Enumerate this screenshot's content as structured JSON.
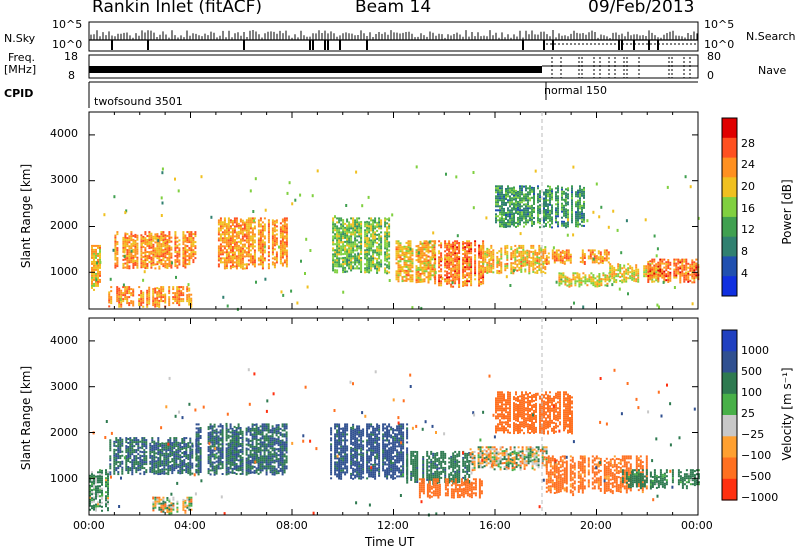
{
  "header": {
    "title": "Rankin Inlet (fitACF)",
    "beam": "Beam 14",
    "date": "09/Feb/2013"
  },
  "top_panel": {
    "nsky_label": "N.Sky",
    "nsearch_label": "N.Search",
    "left_ticks": [
      "10^5",
      "10^0"
    ],
    "right_ticks": [
      "10^5",
      "10^0"
    ],
    "freq_label": "Freq.",
    "freq_unit": "[MHz]",
    "freq_ticks": [
      "18",
      "8"
    ],
    "nave_label": "Nave",
    "nave_ticks": [
      "80",
      "0"
    ],
    "cpid_label": "CPID",
    "cpid_segments": [
      {
        "name": "twofsound 3501",
        "start": "00:00",
        "end": "18:00"
      },
      {
        "name": "normal 150",
        "start": "18:00",
        "end": "24:00"
      }
    ]
  },
  "x_axis": {
    "label": "Time UT",
    "ticks": [
      "00:00",
      "04:00",
      "08:00",
      "12:00",
      "16:00",
      "20:00",
      "00:00"
    ]
  },
  "power_colorbar": {
    "label": "Power [dB]",
    "ticks": [
      "28",
      "24",
      "20",
      "16",
      "12",
      "8",
      "4"
    ],
    "colors": [
      "#e00000",
      "#ff5020",
      "#ff9020",
      "#f0c020",
      "#80d040",
      "#40a050",
      "#308070",
      "#2050b0",
      "#1030e0"
    ]
  },
  "velocity_colorbar": {
    "label": "Velocity [m s⁻¹]",
    "ticks": [
      "1000",
      "500",
      "100",
      "25",
      "−25",
      "−100",
      "−500",
      "−1000"
    ],
    "colors": [
      "#2040c0",
      "#305090",
      "#2e7a50",
      "#48b048",
      "#c8c8c8",
      "#ffa030",
      "#ff7020",
      "#ff3010"
    ]
  },
  "chart_data": [
    {
      "type": "heatmap",
      "title": "",
      "panel": "power",
      "xlabel": "Time UT",
      "ylabel": "Slant Range [km]",
      "xlim": [
        0,
        24
      ],
      "ylim": [
        200,
        4500
      ],
      "y_ticks": [
        "1000",
        "2000",
        "3000",
        "4000"
      ],
      "color_label": "Power [dB]",
      "regions": [
        {
          "t": [
            0.0,
            0.6
          ],
          "r": [
            600,
            1600
          ],
          "v": 20
        },
        {
          "t": [
            0.6,
            4.0
          ],
          "r": [
            250,
            700
          ],
          "v": 22
        },
        {
          "t": [
            1.0,
            4.2
          ],
          "r": [
            1100,
            1900
          ],
          "v": 22
        },
        {
          "t": [
            5.0,
            7.8
          ],
          "r": [
            1100,
            2200
          ],
          "v": 22
        },
        {
          "t": [
            9.5,
            11.8
          ],
          "r": [
            1000,
            2200
          ],
          "v": 14
        },
        {
          "t": [
            12.0,
            13.6
          ],
          "r": [
            800,
            1700
          ],
          "v": 20
        },
        {
          "t": [
            13.6,
            15.5
          ],
          "r": [
            700,
            1700
          ],
          "v": 24
        },
        {
          "t": [
            15.5,
            18.0
          ],
          "r": [
            1000,
            1600
          ],
          "v": 20
        },
        {
          "t": [
            16.0,
            19.5
          ],
          "r": [
            2000,
            2900
          ],
          "v": 10
        },
        {
          "t": [
            18.0,
            20.5
          ],
          "r": [
            1200,
            1500
          ],
          "v": 22
        },
        {
          "t": [
            18.5,
            20.5
          ],
          "r": [
            700,
            1000
          ],
          "v": 18
        },
        {
          "t": [
            20.5,
            22.5
          ],
          "r": [
            800,
            1200
          ],
          "v": 18
        },
        {
          "t": [
            22.0,
            24.0
          ],
          "r": [
            800,
            1300
          ],
          "v": 24
        }
      ]
    },
    {
      "type": "heatmap",
      "title": "",
      "panel": "velocity",
      "xlabel": "Time UT",
      "ylabel": "Slant Range [km]",
      "xlim": [
        0,
        24
      ],
      "ylim": [
        200,
        4500
      ],
      "y_ticks": [
        "1000",
        "2000",
        "3000",
        "4000"
      ],
      "color_label": "Velocity [m s⁻¹]",
      "regions": [
        {
          "t": [
            0.0,
            0.8
          ],
          "r": [
            300,
            1200
          ],
          "v": 100
        },
        {
          "t": [
            0.8,
            4.2
          ],
          "r": [
            1100,
            1900
          ],
          "v": 300
        },
        {
          "t": [
            2.5,
            4.0
          ],
          "r": [
            250,
            600
          ],
          "v": 0
        },
        {
          "t": [
            4.2,
            7.8
          ],
          "r": [
            1100,
            2200
          ],
          "v": 300
        },
        {
          "t": [
            9.5,
            12.5
          ],
          "r": [
            1000,
            2200
          ],
          "v": 400
        },
        {
          "t": [
            12.5,
            15.0
          ],
          "r": [
            900,
            1600
          ],
          "v": 200
        },
        {
          "t": [
            13.0,
            15.5
          ],
          "r": [
            600,
            1000
          ],
          "v": -300
        },
        {
          "t": [
            15.0,
            18.0
          ],
          "r": [
            1200,
            1700
          ],
          "v": 0
        },
        {
          "t": [
            16.0,
            19.0
          ],
          "r": [
            2000,
            2900
          ],
          "v": -300
        },
        {
          "t": [
            18.0,
            22.0
          ],
          "r": [
            700,
            1500
          ],
          "v": -200
        },
        {
          "t": [
            21.0,
            24.0
          ],
          "r": [
            800,
            1200
          ],
          "v": 150
        }
      ]
    }
  ]
}
